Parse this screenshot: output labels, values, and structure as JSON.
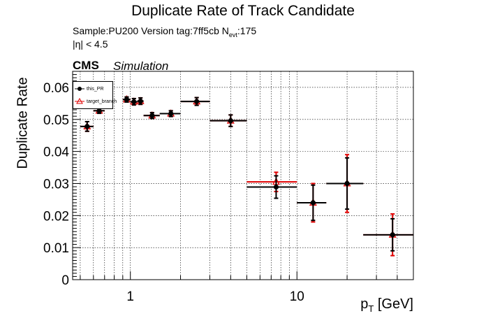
{
  "title": "Duplicate Rate of Track Candidate",
  "info": {
    "sample_line": "Sample:PU200   Version tag:7ff5cb  N",
    "nevt_sub": "evt",
    "nevt_value": ":175",
    "eta_cut": "|η| < 4.5"
  },
  "cms_label": "CMS",
  "simulation_label": "Simulation",
  "chart_data": {
    "type": "scatter",
    "title": "Duplicate Rate of Track Candidate",
    "xlabel": "p_T [GeV]",
    "ylabel": "Duplicate Rate",
    "xscale": "log",
    "xlim": [
      0.45,
      50
    ],
    "ylim": [
      0,
      0.065
    ],
    "x_tick_labels": [
      "1",
      "10"
    ],
    "y_tick_labels": [
      "0",
      "0.01",
      "0.02",
      "0.03",
      "0.04",
      "0.05",
      "0.06"
    ],
    "grid": true,
    "legend_position": "top-left",
    "series": [
      {
        "name": "this_PR",
        "color": "#000000",
        "marker": "circle",
        "points": [
          {
            "x": 0.55,
            "xlo": 0.5,
            "xhi": 0.6,
            "y": 0.0478,
            "yerr": 0.0015
          },
          {
            "x": 0.65,
            "xlo": 0.6,
            "xhi": 0.7,
            "y": 0.0527,
            "yerr": 0.0008
          },
          {
            "x": 0.95,
            "xlo": 0.9,
            "xhi": 1.0,
            "y": 0.0562,
            "yerr": 0.0008
          },
          {
            "x": 1.05,
            "xlo": 1.0,
            "xhi": 1.1,
            "y": 0.0555,
            "yerr": 0.001
          },
          {
            "x": 1.15,
            "xlo": 1.1,
            "xhi": 1.2,
            "y": 0.0557,
            "yerr": 0.001
          },
          {
            "x": 1.35,
            "xlo": 1.2,
            "xhi": 1.5,
            "y": 0.0512,
            "yerr": 0.0009
          },
          {
            "x": 1.75,
            "xlo": 1.5,
            "xhi": 2.0,
            "y": 0.0518,
            "yerr": 0.0009
          },
          {
            "x": 2.5,
            "xlo": 2.0,
            "xhi": 3.0,
            "y": 0.0556,
            "yerr": 0.0012
          },
          {
            "x": 4.0,
            "xlo": 3.0,
            "xhi": 5.0,
            "y": 0.0496,
            "yerr": 0.0018
          },
          {
            "x": 7.5,
            "xlo": 5.0,
            "xhi": 10.0,
            "y": 0.0289,
            "yerr": 0.0035
          },
          {
            "x": 12.5,
            "xlo": 10.0,
            "xhi": 15.0,
            "y": 0.024,
            "yerr": 0.0055
          },
          {
            "x": 20.0,
            "xlo": 15.0,
            "xhi": 25.0,
            "y": 0.03,
            "yerr": 0.008
          },
          {
            "x": 37.5,
            "xlo": 25.0,
            "xhi": 50.0,
            "y": 0.014,
            "yerr": 0.005
          }
        ]
      },
      {
        "name": "target_branch",
        "color": "#e00000",
        "marker": "triangle-open",
        "points": [
          {
            "x": 0.55,
            "xlo": 0.5,
            "xhi": 0.6,
            "y": 0.0478,
            "yerr": 0.0015
          },
          {
            "x": 0.65,
            "xlo": 0.6,
            "xhi": 0.7,
            "y": 0.0527,
            "yerr": 0.0008
          },
          {
            "x": 0.95,
            "xlo": 0.9,
            "xhi": 1.0,
            "y": 0.0562,
            "yerr": 0.0008
          },
          {
            "x": 1.05,
            "xlo": 1.0,
            "xhi": 1.1,
            "y": 0.0555,
            "yerr": 0.001
          },
          {
            "x": 1.15,
            "xlo": 1.1,
            "xhi": 1.2,
            "y": 0.0557,
            "yerr": 0.001
          },
          {
            "x": 1.35,
            "xlo": 1.2,
            "xhi": 1.5,
            "y": 0.0512,
            "yerr": 0.0009
          },
          {
            "x": 1.75,
            "xlo": 1.5,
            "xhi": 2.0,
            "y": 0.0518,
            "yerr": 0.0009
          },
          {
            "x": 2.5,
            "xlo": 2.0,
            "xhi": 3.0,
            "y": 0.0556,
            "yerr": 0.0012
          },
          {
            "x": 4.0,
            "xlo": 3.0,
            "xhi": 5.0,
            "y": 0.0496,
            "yerr": 0.0018
          },
          {
            "x": 7.5,
            "xlo": 5.0,
            "xhi": 10.0,
            "y": 0.0305,
            "yerr": 0.003
          },
          {
            "x": 12.5,
            "xlo": 10.0,
            "xhi": 15.0,
            "y": 0.024,
            "yerr": 0.006
          },
          {
            "x": 20.0,
            "xlo": 15.0,
            "xhi": 25.0,
            "y": 0.03,
            "yerr": 0.009
          },
          {
            "x": 37.5,
            "xlo": 25.0,
            "xhi": 50.0,
            "y": 0.014,
            "yerr": 0.0065
          }
        ]
      }
    ]
  }
}
